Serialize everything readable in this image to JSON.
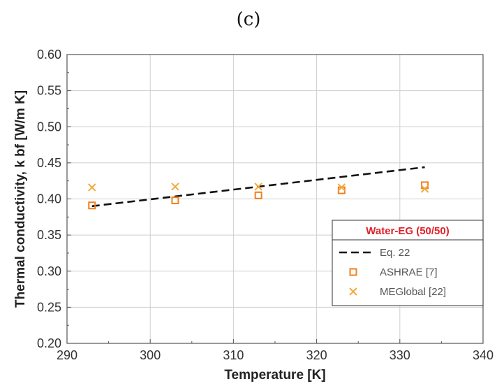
{
  "panel_label": "(c)",
  "chart_data": {
    "type": "scatter",
    "xlabel": "Temperature [K]",
    "ylabel": "Thermal conductivity, k bf [W/m K]",
    "xlim": [
      290,
      340
    ],
    "ylim": [
      0.2,
      0.6
    ],
    "x_ticks": [
      "290",
      "300",
      "310",
      "320",
      "330",
      "340"
    ],
    "y_ticks": [
      "0.20",
      "0.25",
      "0.30",
      "0.35",
      "0.40",
      "0.45",
      "0.50",
      "0.55",
      "0.60"
    ],
    "grid": true,
    "legend": {
      "placement": "bottom-right",
      "title": "Water-EG (50/50)",
      "title_color": "#e0222a"
    },
    "series": [
      {
        "name": "Eq. 22",
        "style": "dashed-line",
        "color": "#111111",
        "x": [
          293,
          333
        ],
        "y": [
          0.39,
          0.444
        ]
      },
      {
        "name": "ASHRAE [7]",
        "style": "square-marker",
        "color": "#f07f1e",
        "x": [
          293,
          303,
          313,
          323,
          333
        ],
        "y": [
          0.391,
          0.398,
          0.405,
          0.412,
          0.419
        ]
      },
      {
        "name": "MEGlobal [22]",
        "style": "x-marker",
        "color": "#f2a93b",
        "x": [
          293,
          303,
          313,
          323,
          333
        ],
        "y": [
          0.416,
          0.417,
          0.417,
          0.416,
          0.414
        ]
      }
    ]
  }
}
